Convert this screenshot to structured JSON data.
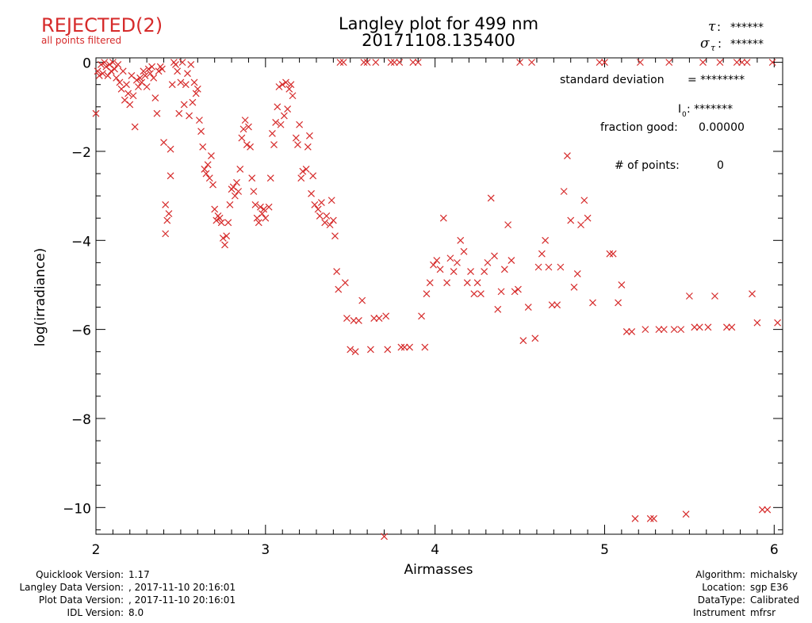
{
  "status": {
    "label": "REJECTED(2)",
    "note": "all points filtered",
    "color": "#d62b2b"
  },
  "title": {
    "line1": "Langley plot for 499 nm",
    "line2": "20171108.135400"
  },
  "tau": {
    "symbol": "τ",
    "sigma_symbol": "σ",
    "sigma_sub": "τ",
    "value": "******",
    "sigma_value": "******"
  },
  "stats": {
    "std_label": "standard deviation",
    "std_value": "= ********",
    "i0_label": "I",
    "i0_sub": "0",
    "i0_value": ": *******",
    "fraction_label": "fraction good:",
    "fraction_value": "0.00000",
    "npoints_label": "# of points:",
    "npoints_value": "0"
  },
  "chart_data": {
    "type": "scatter",
    "title": "Langley plot for 499 nm",
    "subtitle": "20171108.135400",
    "xlabel": "Airmasses",
    "ylabel": "log(irradiance)",
    "xlim": [
      2.0,
      6.05
    ],
    "ylim": [
      -10.6,
      0.1
    ],
    "xticks": [
      2,
      3,
      4,
      5,
      6
    ],
    "yticks": [
      0,
      -2,
      -4,
      -6,
      -8,
      -10
    ],
    "xtick_labels": [
      "2",
      "3",
      "4",
      "5",
      "6"
    ],
    "ytick_labels": [
      "0",
      "−2",
      "−4",
      "−6",
      "−8",
      "−10"
    ],
    "marker": "x",
    "marker_color": "#d62b2b",
    "grid": false,
    "points": [
      [
        2.0,
        -1.15
      ],
      [
        2.01,
        -0.2
      ],
      [
        2.02,
        -0.3
      ],
      [
        2.03,
        -0.05
      ],
      [
        2.04,
        -0.25
      ],
      [
        2.05,
        -0.0
      ],
      [
        2.06,
        -0.1
      ],
      [
        2.07,
        -0.3
      ],
      [
        2.08,
        -0.05
      ],
      [
        2.09,
        -0.2
      ],
      [
        2.1,
        -0.0
      ],
      [
        2.11,
        -0.15
      ],
      [
        2.12,
        -0.35
      ],
      [
        2.13,
        -0.05
      ],
      [
        2.14,
        -0.45
      ],
      [
        2.15,
        -0.6
      ],
      [
        2.16,
        -0.2
      ],
      [
        2.17,
        -0.85
      ],
      [
        2.18,
        -0.5
      ],
      [
        2.19,
        -0.7
      ],
      [
        2.2,
        -0.95
      ],
      [
        2.21,
        -0.3
      ],
      [
        2.22,
        -0.75
      ],
      [
        2.23,
        -1.45
      ],
      [
        2.24,
        -0.4
      ],
      [
        2.25,
        -0.55
      ],
      [
        2.26,
        -0.35
      ],
      [
        2.27,
        -0.45
      ],
      [
        2.28,
        -0.2
      ],
      [
        2.29,
        -0.3
      ],
      [
        2.3,
        -0.55
      ],
      [
        2.31,
        -0.15
      ],
      [
        2.32,
        -0.25
      ],
      [
        2.33,
        -0.1
      ],
      [
        2.34,
        -0.35
      ],
      [
        2.35,
        -0.8
      ],
      [
        2.36,
        -1.15
      ],
      [
        2.37,
        -0.2
      ],
      [
        2.38,
        -0.1
      ],
      [
        2.39,
        -0.15
      ],
      [
        2.4,
        -1.8
      ],
      [
        2.41,
        -3.2
      ],
      [
        2.41,
        -3.85
      ],
      [
        2.42,
        -3.55
      ],
      [
        2.43,
        -3.4
      ],
      [
        2.44,
        -1.95
      ],
      [
        2.44,
        -2.55
      ],
      [
        2.45,
        -0.5
      ],
      [
        2.46,
        -0.0
      ],
      [
        2.47,
        -0.05
      ],
      [
        2.48,
        -0.2
      ],
      [
        2.49,
        -1.15
      ],
      [
        2.5,
        -0.45
      ],
      [
        2.51,
        -0.0
      ],
      [
        2.52,
        -0.95
      ],
      [
        2.53,
        -0.5
      ],
      [
        2.54,
        -0.25
      ],
      [
        2.55,
        -1.2
      ],
      [
        2.56,
        -0.05
      ],
      [
        2.57,
        -0.9
      ],
      [
        2.58,
        -0.45
      ],
      [
        2.59,
        -0.7
      ],
      [
        2.6,
        -0.6
      ],
      [
        2.61,
        -1.3
      ],
      [
        2.62,
        -1.55
      ],
      [
        2.63,
        -1.9
      ],
      [
        2.64,
        -2.4
      ],
      [
        2.65,
        -2.5
      ],
      [
        2.66,
        -2.3
      ],
      [
        2.67,
        -2.6
      ],
      [
        2.68,
        -2.1
      ],
      [
        2.69,
        -2.75
      ],
      [
        2.7,
        -3.3
      ],
      [
        2.71,
        -3.55
      ],
      [
        2.72,
        -3.45
      ],
      [
        2.73,
        -3.5
      ],
      [
        2.74,
        -3.6
      ],
      [
        2.75,
        -3.95
      ],
      [
        2.76,
        -4.1
      ],
      [
        2.77,
        -3.9
      ],
      [
        2.78,
        -3.6
      ],
      [
        2.79,
        -3.2
      ],
      [
        2.8,
        -2.85
      ],
      [
        2.81,
        -2.8
      ],
      [
        2.82,
        -3.0
      ],
      [
        2.83,
        -2.7
      ],
      [
        2.84,
        -2.9
      ],
      [
        2.85,
        -2.4
      ],
      [
        2.86,
        -1.7
      ],
      [
        2.87,
        -1.5
      ],
      [
        2.88,
        -1.3
      ],
      [
        2.89,
        -1.85
      ],
      [
        2.9,
        -1.45
      ],
      [
        2.91,
        -1.9
      ],
      [
        2.92,
        -2.6
      ],
      [
        2.93,
        -2.9
      ],
      [
        2.94,
        -3.2
      ],
      [
        2.95,
        -3.5
      ],
      [
        2.96,
        -3.6
      ],
      [
        2.97,
        -3.25
      ],
      [
        2.98,
        -3.4
      ],
      [
        2.99,
        -3.3
      ],
      [
        3.0,
        -3.5
      ],
      [
        3.02,
        -3.25
      ],
      [
        3.03,
        -2.6
      ],
      [
        3.04,
        -1.6
      ],
      [
        3.05,
        -1.85
      ],
      [
        3.06,
        -1.35
      ],
      [
        3.07,
        -1.0
      ],
      [
        3.08,
        -0.55
      ],
      [
        3.09,
        -1.4
      ],
      [
        3.1,
        -0.5
      ],
      [
        3.11,
        -1.2
      ],
      [
        3.12,
        -0.45
      ],
      [
        3.13,
        -1.05
      ],
      [
        3.14,
        -0.6
      ],
      [
        3.15,
        -0.5
      ],
      [
        3.16,
        -0.75
      ],
      [
        3.18,
        -1.7
      ],
      [
        3.19,
        -1.85
      ],
      [
        3.2,
        -1.4
      ],
      [
        3.21,
        -2.6
      ],
      [
        3.22,
        -2.45
      ],
      [
        3.24,
        -2.4
      ],
      [
        3.25,
        -1.9
      ],
      [
        3.26,
        -1.65
      ],
      [
        3.27,
        -2.95
      ],
      [
        3.28,
        -2.55
      ],
      [
        3.29,
        -3.2
      ],
      [
        3.31,
        -3.3
      ],
      [
        3.32,
        -3.45
      ],
      [
        3.33,
        -3.15
      ],
      [
        3.35,
        -3.6
      ],
      [
        3.36,
        -3.45
      ],
      [
        3.38,
        -3.65
      ],
      [
        3.39,
        -3.1
      ],
      [
        3.4,
        -3.55
      ],
      [
        3.41,
        -3.9
      ],
      [
        3.42,
        -4.7
      ],
      [
        3.43,
        -5.1
      ],
      [
        3.44,
        -0.0
      ],
      [
        3.46,
        -0.0
      ],
      [
        3.47,
        -4.95
      ],
      [
        3.48,
        -5.75
      ],
      [
        3.5,
        -6.45
      ],
      [
        3.52,
        -5.8
      ],
      [
        3.53,
        -6.5
      ],
      [
        3.55,
        -5.8
      ],
      [
        3.57,
        -5.35
      ],
      [
        3.58,
        -0.0
      ],
      [
        3.6,
        -0.0
      ],
      [
        3.62,
        -6.45
      ],
      [
        3.64,
        -5.75
      ],
      [
        3.65,
        -0.0
      ],
      [
        3.67,
        -5.75
      ],
      [
        3.7,
        -10.65
      ],
      [
        3.71,
        -5.7
      ],
      [
        3.72,
        -6.45
      ],
      [
        3.74,
        -0.0
      ],
      [
        3.76,
        -0.0
      ],
      [
        3.79,
        -0.0
      ],
      [
        3.8,
        -6.4
      ],
      [
        3.82,
        -6.4
      ],
      [
        3.85,
        -6.4
      ],
      [
        3.87,
        -0.0
      ],
      [
        3.9,
        -0.0
      ],
      [
        3.92,
        -5.7
      ],
      [
        3.94,
        -6.4
      ],
      [
        3.95,
        -5.2
      ],
      [
        3.97,
        -4.95
      ],
      [
        3.99,
        -4.55
      ],
      [
        4.01,
        -4.45
      ],
      [
        4.03,
        -4.65
      ],
      [
        4.05,
        -3.5
      ],
      [
        4.07,
        -4.95
      ],
      [
        4.09,
        -4.4
      ],
      [
        4.11,
        -4.7
      ],
      [
        4.13,
        -4.5
      ],
      [
        4.15,
        -4.0
      ],
      [
        4.17,
        -4.25
      ],
      [
        4.19,
        -4.95
      ],
      [
        4.21,
        -4.7
      ],
      [
        4.23,
        -5.2
      ],
      [
        4.25,
        -4.95
      ],
      [
        4.27,
        -5.2
      ],
      [
        4.29,
        -4.7
      ],
      [
        4.31,
        -4.5
      ],
      [
        4.33,
        -3.05
      ],
      [
        4.35,
        -4.35
      ],
      [
        4.37,
        -5.55
      ],
      [
        4.39,
        -5.15
      ],
      [
        4.41,
        -4.65
      ],
      [
        4.43,
        -3.65
      ],
      [
        4.45,
        -4.45
      ],
      [
        4.47,
        -5.15
      ],
      [
        4.49,
        -5.1
      ],
      [
        4.5,
        -0.0
      ],
      [
        4.52,
        -6.25
      ],
      [
        4.55,
        -5.5
      ],
      [
        4.57,
        -0.0
      ],
      [
        4.59,
        -6.2
      ],
      [
        4.61,
        -4.6
      ],
      [
        4.63,
        -4.3
      ],
      [
        4.65,
        -4.0
      ],
      [
        4.67,
        -4.6
      ],
      [
        4.69,
        -5.45
      ],
      [
        4.72,
        -5.45
      ],
      [
        4.74,
        -4.6
      ],
      [
        4.76,
        -2.9
      ],
      [
        4.78,
        -2.1
      ],
      [
        4.8,
        -3.55
      ],
      [
        4.82,
        -5.05
      ],
      [
        4.84,
        -4.75
      ],
      [
        4.86,
        -3.65
      ],
      [
        4.88,
        -3.1
      ],
      [
        4.9,
        -3.5
      ],
      [
        4.93,
        -5.4
      ],
      [
        4.97,
        -0.0
      ],
      [
        5.0,
        -0.0
      ],
      [
        5.03,
        -4.3
      ],
      [
        5.05,
        -4.3
      ],
      [
        5.08,
        -5.4
      ],
      [
        5.1,
        -5.0
      ],
      [
        5.13,
        -6.05
      ],
      [
        5.16,
        -6.05
      ],
      [
        5.18,
        -10.25
      ],
      [
        5.21,
        -0.0
      ],
      [
        5.24,
        -6.0
      ],
      [
        5.27,
        -10.25
      ],
      [
        5.29,
        -10.25
      ],
      [
        5.32,
        -6.0
      ],
      [
        5.35,
        -6.0
      ],
      [
        5.38,
        -0.0
      ],
      [
        5.41,
        -6.0
      ],
      [
        5.45,
        -6.0
      ],
      [
        5.48,
        -10.15
      ],
      [
        5.5,
        -5.25
      ],
      [
        5.53,
        -5.95
      ],
      [
        5.56,
        -5.95
      ],
      [
        5.58,
        -0.0
      ],
      [
        5.61,
        -5.95
      ],
      [
        5.65,
        -5.25
      ],
      [
        5.68,
        -0.0
      ],
      [
        5.72,
        -5.95
      ],
      [
        5.75,
        -5.95
      ],
      [
        5.78,
        -0.0
      ],
      [
        5.81,
        -0.0
      ],
      [
        5.84,
        -0.0
      ],
      [
        5.87,
        -5.2
      ],
      [
        5.9,
        -5.85
      ],
      [
        5.93,
        -10.05
      ],
      [
        5.96,
        -10.05
      ],
      [
        5.99,
        -0.0
      ],
      [
        6.02,
        -5.85
      ]
    ]
  },
  "footer_left": [
    {
      "key": "Quicklook Version:",
      "value": "1.17"
    },
    {
      "key": "Langley Data Version:",
      "value": ", 2017-11-10 20:16:01"
    },
    {
      "key": "Plot Data Version:",
      "value": ", 2017-11-10 20:16:01"
    },
    {
      "key": "IDL Version:",
      "value": "8.0"
    }
  ],
  "footer_right": [
    {
      "key": "Algorithm:",
      "value": "michalsky"
    },
    {
      "key": "Location:",
      "value": "sgp E36"
    },
    {
      "key": "DataType:",
      "value": "Calibrated"
    },
    {
      "key": "Instrument",
      "value": "mfrsr"
    }
  ]
}
